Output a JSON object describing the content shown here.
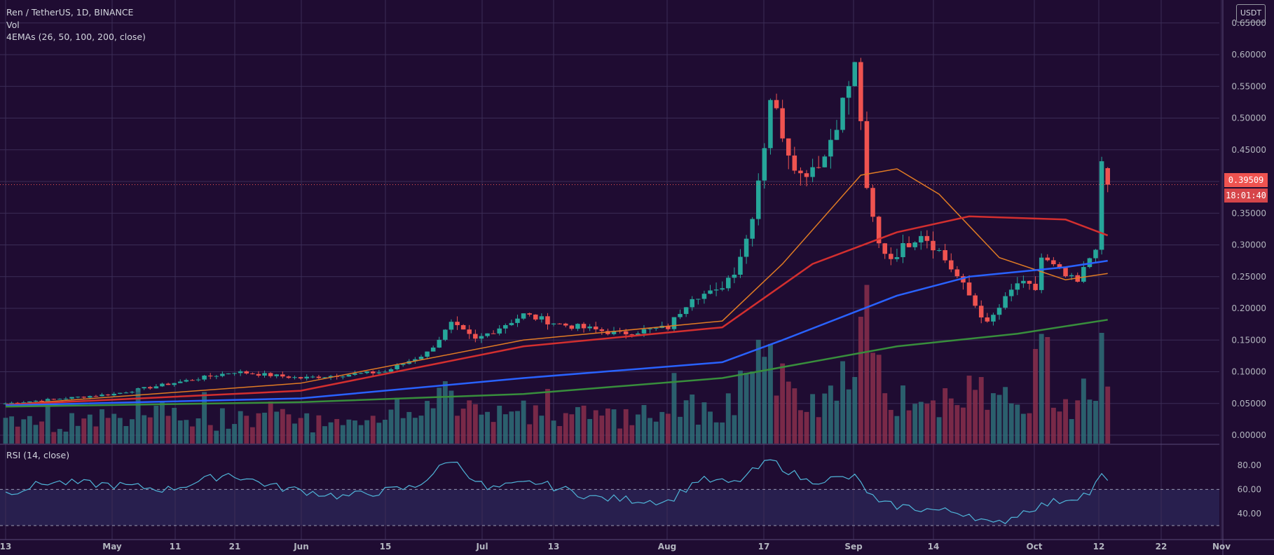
{
  "header": {
    "symbol_line": "Ren / TetherUS, 1D, BINANCE",
    "volume_label": "Vol",
    "ema_label": "4EMAs (26, 50, 100, 200, close)",
    "rsi_label": "RSI (14, close)",
    "currency": "USDT"
  },
  "price_axis": {
    "ticks": [
      "0.65000",
      "0.60000",
      "0.55000",
      "0.50000",
      "0.45000",
      "0.40000",
      "0.35000",
      "0.30000",
      "0.25000",
      "0.20000",
      "0.15000",
      "0.10000",
      "0.05000",
      "0.00000"
    ],
    "last_price": "0.39509",
    "countdown": "18:01:40"
  },
  "rsi_axis": {
    "ticks": [
      "80.00",
      "60.00",
      "40.00"
    ]
  },
  "time_axis": {
    "ticks": [
      "13",
      "May",
      "11",
      "21",
      "Jun",
      "15",
      "Jul",
      "13",
      "Aug",
      "17",
      "Sep",
      "14",
      "Oct",
      "12",
      "22",
      "Nov"
    ]
  },
  "colors": {
    "background": "#1f0c32",
    "up": "#26a69a",
    "down": "#ef5350",
    "ema26": "#e07b24",
    "ema50": "#d32f2f",
    "ema100": "#2962ff",
    "ema200": "#388e3c",
    "rsi": "#4fb4d8"
  },
  "chart_data": {
    "type": "candlestick",
    "title": "Ren / TetherUS, 1D, BINANCE",
    "x_range": [
      "2020-04-13",
      "2020-11-01"
    ],
    "y_range": [
      0,
      0.65
    ],
    "rsi_range": [
      30,
      80
    ],
    "ohlc_knots": [
      {
        "date": "2020-04-13",
        "close": 0.05
      },
      {
        "date": "2020-05-01",
        "close": 0.065
      },
      {
        "date": "2020-05-21",
        "close": 0.1
      },
      {
        "date": "2020-06-01",
        "close": 0.09
      },
      {
        "date": "2020-06-15",
        "close": 0.1
      },
      {
        "date": "2020-06-22",
        "close": 0.13
      },
      {
        "date": "2020-06-26",
        "close": 0.175
      },
      {
        "date": "2020-06-30",
        "close": 0.15
      },
      {
        "date": "2020-07-08",
        "close": 0.19
      },
      {
        "date": "2020-07-14",
        "close": 0.175
      },
      {
        "date": "2020-07-24",
        "close": 0.16
      },
      {
        "date": "2020-08-01",
        "close": 0.17
      },
      {
        "date": "2020-08-05",
        "close": 0.22
      },
      {
        "date": "2020-08-09",
        "close": 0.225
      },
      {
        "date": "2020-08-12",
        "close": 0.26
      },
      {
        "date": "2020-08-14",
        "close": 0.31
      },
      {
        "date": "2020-08-15",
        "close": 0.35
      },
      {
        "date": "2020-08-17",
        "close": 0.46
      },
      {
        "date": "2020-08-18",
        "close": 0.535
      },
      {
        "date": "2020-08-21",
        "close": 0.45
      },
      {
        "date": "2020-08-23",
        "close": 0.41
      },
      {
        "date": "2020-08-27",
        "close": 0.44
      },
      {
        "date": "2020-09-01",
        "close": 0.58
      },
      {
        "date": "2020-09-02",
        "close": 0.5
      },
      {
        "date": "2020-09-03",
        "close": 0.38
      },
      {
        "date": "2020-09-05",
        "close": 0.3
      },
      {
        "date": "2020-09-07",
        "close": 0.28
      },
      {
        "date": "2020-09-12",
        "close": 0.32
      },
      {
        "date": "2020-09-15",
        "close": 0.29
      },
      {
        "date": "2020-09-18",
        "close": 0.25
      },
      {
        "date": "2020-09-23",
        "close": 0.175
      },
      {
        "date": "2020-09-28",
        "close": 0.24
      },
      {
        "date": "2020-10-01",
        "close": 0.23
      },
      {
        "date": "2020-10-02",
        "close": 0.28
      },
      {
        "date": "2020-10-06",
        "close": 0.25
      },
      {
        "date": "2020-10-08",
        "close": 0.24
      },
      {
        "date": "2020-10-10",
        "close": 0.28
      },
      {
        "date": "2020-10-11",
        "close": 0.3
      },
      {
        "date": "2020-10-12",
        "close": 0.42
      },
      {
        "date": "2020-10-13",
        "close": 0.395
      }
    ],
    "ema_series": [
      {
        "name": "EMA 26",
        "points": [
          [
            "2020-04-13",
            0.048
          ],
          [
            "2020-06-01",
            0.082
          ],
          [
            "2020-07-08",
            0.15
          ],
          [
            "2020-08-10",
            0.18
          ],
          [
            "2020-08-20",
            0.27
          ],
          [
            "2020-09-02",
            0.41
          ],
          [
            "2020-09-08",
            0.42
          ],
          [
            "2020-09-15",
            0.38
          ],
          [
            "2020-09-25",
            0.28
          ],
          [
            "2020-10-06",
            0.245
          ],
          [
            "2020-10-13",
            0.255
          ]
        ]
      },
      {
        "name": "EMA 50",
        "points": [
          [
            "2020-04-13",
            0.048
          ],
          [
            "2020-06-01",
            0.07
          ],
          [
            "2020-07-08",
            0.14
          ],
          [
            "2020-08-10",
            0.17
          ],
          [
            "2020-08-25",
            0.27
          ],
          [
            "2020-09-08",
            0.32
          ],
          [
            "2020-09-20",
            0.345
          ],
          [
            "2020-10-06",
            0.34
          ],
          [
            "2020-10-13",
            0.315
          ]
        ]
      },
      {
        "name": "EMA 100",
        "points": [
          [
            "2020-04-13",
            0.047
          ],
          [
            "2020-06-01",
            0.058
          ],
          [
            "2020-07-08",
            0.09
          ],
          [
            "2020-08-10",
            0.115
          ],
          [
            "2020-08-20",
            0.15
          ],
          [
            "2020-09-08",
            0.22
          ],
          [
            "2020-09-20",
            0.25
          ],
          [
            "2020-10-06",
            0.265
          ],
          [
            "2020-10-13",
            0.275
          ]
        ]
      },
      {
        "name": "EMA 200",
        "points": [
          [
            "2020-04-13",
            0.045
          ],
          [
            "2020-06-01",
            0.052
          ],
          [
            "2020-07-08",
            0.065
          ],
          [
            "2020-08-10",
            0.09
          ],
          [
            "2020-09-08",
            0.14
          ],
          [
            "2020-09-28",
            0.16
          ],
          [
            "2020-10-13",
            0.182
          ]
        ]
      }
    ],
    "rsi_knots": [
      [
        "2020-04-13",
        57
      ],
      [
        "2020-04-20",
        66
      ],
      [
        "2020-04-30",
        64
      ],
      [
        "2020-05-10",
        60
      ],
      [
        "2020-05-20",
        73
      ],
      [
        "2020-05-28",
        62
      ],
      [
        "2020-06-08",
        54
      ],
      [
        "2020-06-20",
        62
      ],
      [
        "2020-06-26",
        85
      ],
      [
        "2020-07-02",
        60
      ],
      [
        "2020-07-10",
        66
      ],
      [
        "2020-07-20",
        53
      ],
      [
        "2020-08-01",
        50
      ],
      [
        "2020-08-06",
        68
      ],
      [
        "2020-08-12",
        65
      ],
      [
        "2020-08-18",
        84
      ],
      [
        "2020-08-24",
        67
      ],
      [
        "2020-09-01",
        70
      ],
      [
        "2020-09-05",
        48
      ],
      [
        "2020-09-12",
        44
      ],
      [
        "2020-09-20",
        40
      ],
      [
        "2020-09-24",
        30
      ],
      [
        "2020-09-30",
        44
      ],
      [
        "2020-10-06",
        52
      ],
      [
        "2020-10-10",
        57
      ],
      [
        "2020-10-12",
        71
      ],
      [
        "2020-10-13",
        67
      ]
    ],
    "rsi_levels": [
      60,
      30
    ],
    "volume_note": "daily volume bars colored by candle direction"
  }
}
